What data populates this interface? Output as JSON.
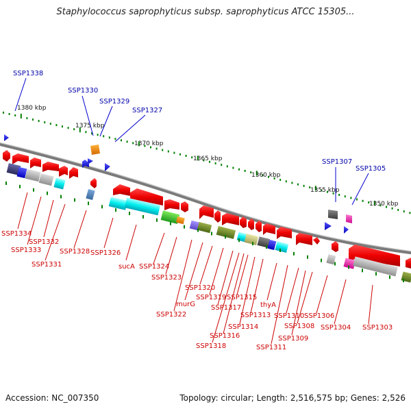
{
  "title": "Staphylococcus saprophyticus subsp. saprophyticus ATCC 15305...",
  "footer": {
    "accession": "Accession: NC_007350",
    "topology": "Topology: circular; Length: 2,516,575 bp; Genes: 2,526"
  },
  "scale_labels": [
    "1380 kbp",
    "1375 kbp",
    "1370 kbp",
    "1365 kbp",
    "1360 kbp",
    "1355 kbp",
    "1350 kbp"
  ],
  "top_labels": [
    "SSP1338",
    "SSP1330",
    "SSP1329",
    "SSP1327",
    "SSP1307",
    "SSP1305"
  ],
  "bottom_labels": [
    "SSP1334",
    "SSP1333",
    "SSP1332",
    "SSP1331",
    "SSP1328",
    "SSP1326",
    "sucA",
    "SSP1324",
    "SSP1323",
    "SSP1322",
    "murG",
    "SSP1320",
    "SSP1319",
    "SSP1317",
    "SSP1318",
    "SSP1316",
    "SSP1315",
    "SSP1314",
    "SSP1313",
    "thyA",
    "SSP1311",
    "SSP1310",
    "SSP1309",
    "SSP1308",
    "SSP1306",
    "SSP1304",
    "SSP1303"
  ],
  "colors": {
    "top_label": "#0000aa",
    "bottom_label": "#cc0000",
    "scale_tick": "#008000",
    "backbone": "#808080",
    "gene_red": "#ee0000",
    "gene_blue": "#0000ee"
  }
}
